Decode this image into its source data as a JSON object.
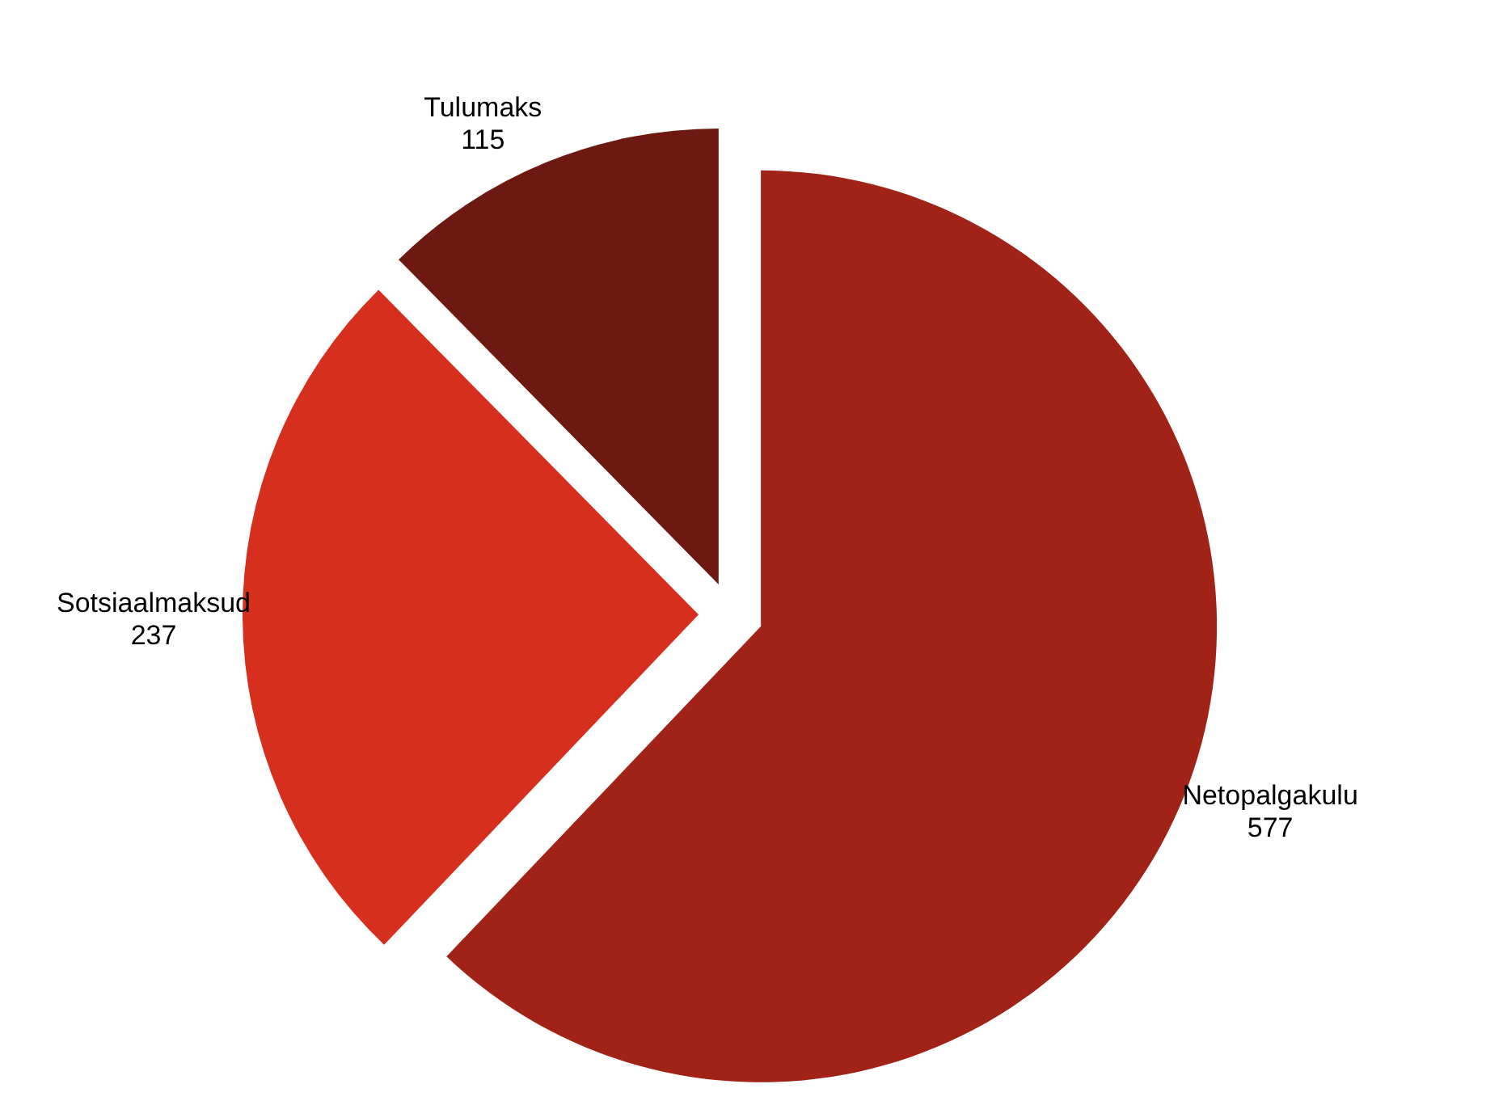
{
  "chart_data": {
    "type": "pie",
    "categories": [
      "Netopalgakulu",
      "Sotsiaalmaksud",
      "Tulumaks"
    ],
    "values": [
      577,
      237,
      115
    ],
    "colors": [
      "#a12318",
      "#d72f1e",
      "#6d1810"
    ],
    "data_labels": true
  }
}
